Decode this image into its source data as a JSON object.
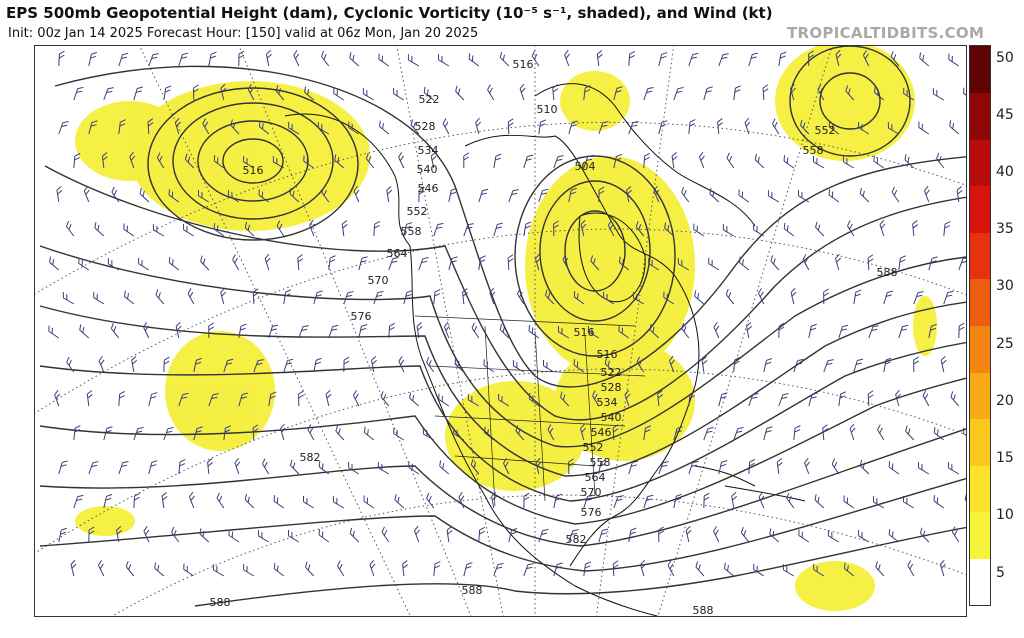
{
  "header": {
    "title": "EPS 500mb Geopotential Height (dam), Cyclonic Vorticity (10⁻⁵ s⁻¹, shaded), and Wind (kt)",
    "subtitle": "Init: 00z Jan 14 2025   Forecast Hour: [150]   valid at 06z Mon, Jan 20 2025",
    "brand": "TROPICALTIDBITS.COM"
  },
  "map": {
    "contour_labels": [
      "516",
      "522",
      "528",
      "534",
      "540",
      "546",
      "552",
      "558",
      "564",
      "570",
      "576",
      "582",
      "588"
    ],
    "contour_instances": [
      {
        "value": "516"
      },
      {
        "value": "516"
      },
      {
        "value": "522"
      },
      {
        "value": "528"
      },
      {
        "value": "534"
      },
      {
        "value": "540"
      },
      {
        "value": "546"
      },
      {
        "value": "552"
      },
      {
        "value": "558"
      },
      {
        "value": "564"
      },
      {
        "value": "570"
      },
      {
        "value": "576"
      },
      {
        "value": "504"
      },
      {
        "value": "510"
      },
      {
        "value": "516"
      },
      {
        "value": "516"
      },
      {
        "value": "522"
      },
      {
        "value": "528"
      },
      {
        "value": "534"
      },
      {
        "value": "540"
      },
      {
        "value": "546"
      },
      {
        "value": "552"
      },
      {
        "value": "558"
      },
      {
        "value": "564"
      },
      {
        "value": "570"
      },
      {
        "value": "576"
      },
      {
        "value": "582"
      },
      {
        "value": "552"
      },
      {
        "value": "558"
      },
      {
        "value": "588"
      },
      {
        "value": "582"
      },
      {
        "value": "588"
      },
      {
        "value": "588"
      },
      {
        "value": "588"
      }
    ],
    "shading_color": "#f5ef3b",
    "contour_color": "#333333",
    "wind_barb_color": "#3a3f7a"
  },
  "colorbar": {
    "ticks": [
      "50",
      "45",
      "40",
      "35",
      "30",
      "25",
      "20",
      "15",
      "10",
      "5"
    ],
    "colors_bottom_to_top": [
      "#ffffff",
      "#f7f43a",
      "#fbe22c",
      "#fbc81f",
      "#f9a817",
      "#f48512",
      "#ee5c10",
      "#e6330f",
      "#d8150d",
      "#b80d0a",
      "#8f0606",
      "#5e0202"
    ]
  }
}
